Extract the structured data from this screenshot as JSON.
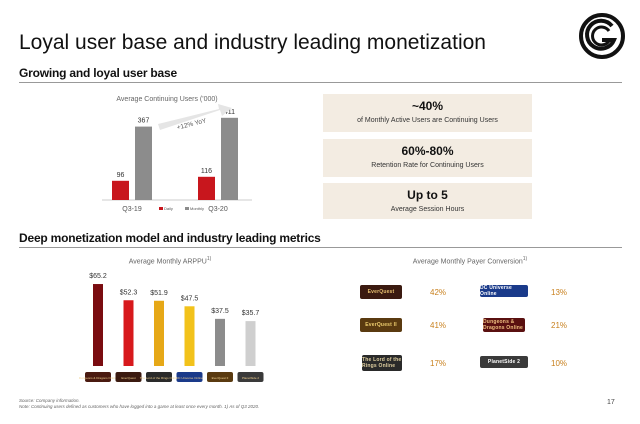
{
  "title": "Loyal user base and industry leading monetization",
  "section1": {
    "heading": "Growing and loyal user base"
  },
  "section2": {
    "heading": "Deep monetization model and industry leading metrics"
  },
  "stats": [
    {
      "value": "~40%",
      "desc": "of Monthly Active Users are Continuing Users"
    },
    {
      "value": "60%-80%",
      "desc": "Retention Rate for Continuing Users"
    },
    {
      "value": "Up to 5",
      "desc": "Average Session Hours"
    }
  ],
  "conversion": {
    "title": "Average Monthly Payer Conversion",
    "superscript": "1)",
    "items": [
      {
        "game": "EverQuest",
        "pct": "42%"
      },
      {
        "game": "DC Universe Online",
        "pct": "13%"
      },
      {
        "game": "EverQuest II",
        "pct": "41%"
      },
      {
        "game": "Dungeons & Dragons Online",
        "pct": "21%"
      },
      {
        "game": "The Lord of the Rings Online",
        "pct": "17%"
      },
      {
        "game": "PlanetSide 2",
        "pct": "10%"
      }
    ]
  },
  "footnotes": {
    "source": "Source: Company information.",
    "note": "Note: Continuing users defined as customers who have logged into a game at least once every month. 1) As of Q3 2020."
  },
  "page_number": "17",
  "colors": {
    "red": "#c8161d",
    "gray": "#8c8c8c",
    "gold": "#c8801e",
    "box": "#f3ece2"
  },
  "chart_data": [
    {
      "type": "bar",
      "title": "Average Continuing Users ('000)",
      "categories": [
        "Q3-19",
        "Q3-20"
      ],
      "series": [
        {
          "name": "Daily",
          "values": [
            96,
            116
          ],
          "color": "#c8161d"
        },
        {
          "name": "Monthly",
          "values": [
            367,
            411
          ],
          "color": "#8c8c8c"
        }
      ],
      "value_labels": [
        [
          "96",
          "116"
        ],
        [
          "367",
          "411"
        ]
      ],
      "annotation": "+12% YoY",
      "ylim": [
        0,
        420
      ]
    },
    {
      "type": "bar",
      "title": "Average Monthly ARPPU",
      "title_superscript": "1)",
      "categories": [
        "Dungeons & Dragons Online",
        "EverQuest",
        "The Lord of the Rings Online",
        "DC Universe Online",
        "EverQuest II",
        "PlanetSide 2"
      ],
      "values": [
        65.2,
        52.3,
        51.9,
        47.5,
        37.5,
        35.7
      ],
      "value_labels": [
        "$65.2",
        "$52.3",
        "$51.9",
        "$47.5",
        "$37.5",
        "$35.7"
      ],
      "colors": [
        "#7a0c10",
        "#d7191c",
        "#e6a817",
        "#f2c21b",
        "#8c8c8c",
        "#cfcfcf"
      ],
      "ylim": [
        0,
        70
      ]
    }
  ]
}
